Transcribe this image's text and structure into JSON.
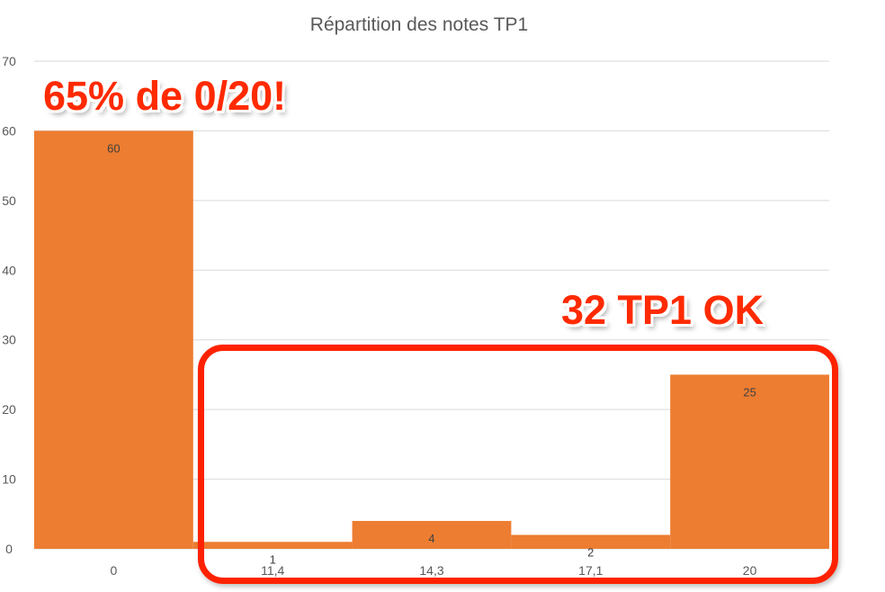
{
  "chart_data": {
    "type": "bar",
    "title": "Répartition des notes TP1",
    "categories": [
      "0",
      "11,4",
      "14,3",
      "17,1",
      "20"
    ],
    "values": [
      60,
      1,
      4,
      2,
      25
    ],
    "data_labels": [
      "60",
      "1",
      "4",
      "2",
      "25"
    ],
    "ylim": [
      0,
      70
    ],
    "yticks": [
      "0",
      "10",
      "20",
      "30",
      "40",
      "50",
      "60",
      "70"
    ],
    "ytick_values": [
      0,
      10,
      20,
      30,
      40,
      50,
      60,
      70
    ],
    "grid": true,
    "legend": "none",
    "xlabel": "",
    "ylabel": "",
    "bar_color": "#ed7d31",
    "annotations": [
      "65% de 0/20!",
      "32 TP1 OK"
    ],
    "annotation_color": "#ff2a00"
  }
}
